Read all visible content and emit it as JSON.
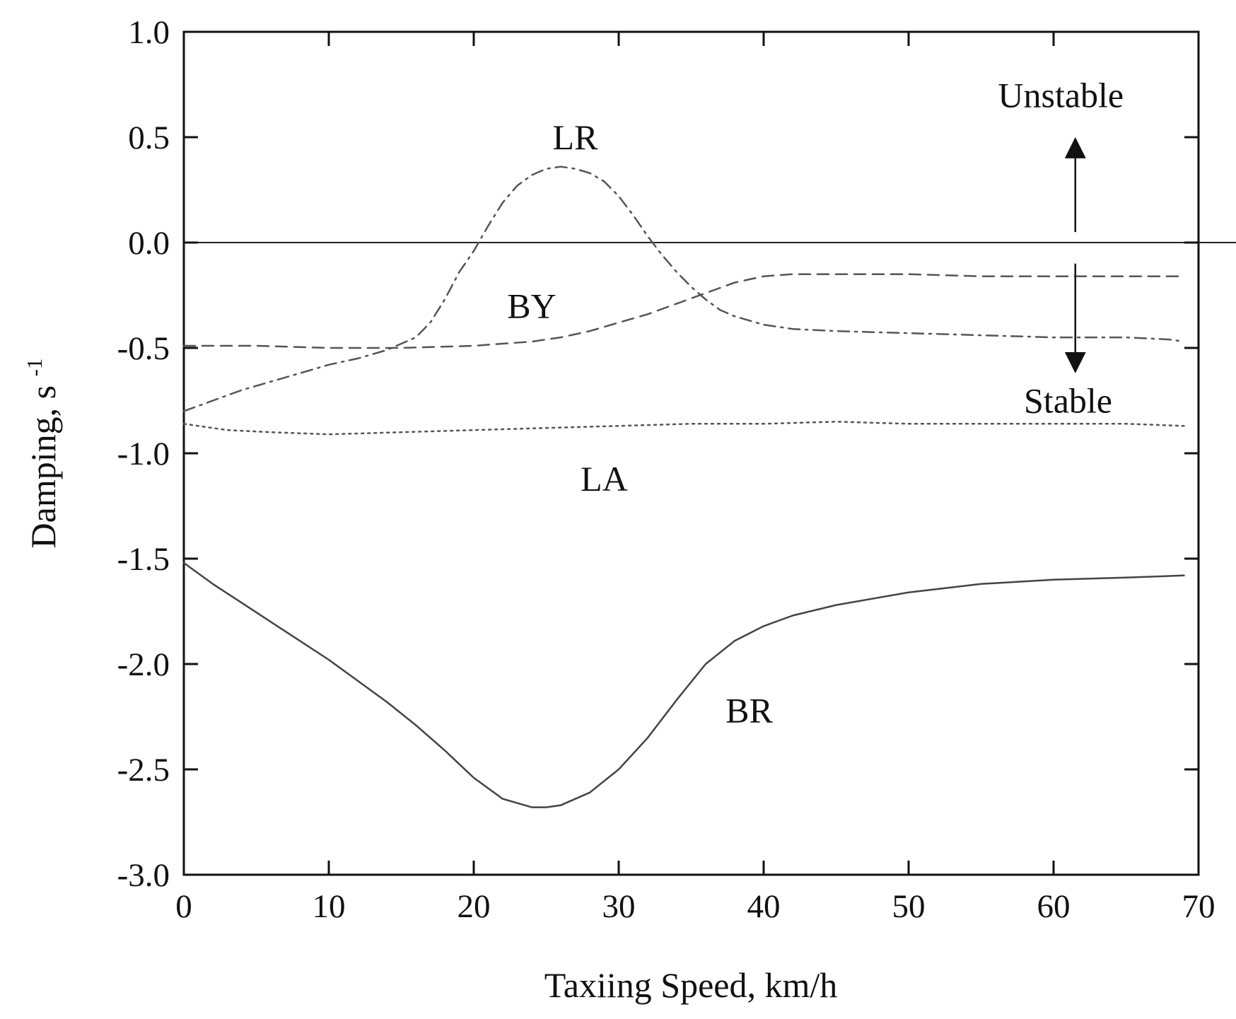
{
  "chart_data": {
    "type": "line",
    "title": "",
    "xlabel": "Taxiing Speed, km/h",
    "ylabel_main": "Damping, s",
    "ylabel_sup": "-1",
    "xlim": [
      0,
      70
    ],
    "ylim": [
      -3.0,
      1.0
    ],
    "xticks": [
      0,
      10,
      20,
      30,
      40,
      50,
      60,
      70
    ],
    "xtick_labels": [
      "0",
      "10",
      "20",
      "30",
      "40",
      "50",
      "60",
      "70"
    ],
    "yticks": [
      1.0,
      0.5,
      0.0,
      -0.5,
      -1.0,
      -1.5,
      -2.0,
      -2.5,
      -3.0
    ],
    "ytick_labels": [
      "1.0",
      "0.5",
      "0.0",
      "-0.5",
      "-1.0",
      "-1.5",
      "-2.0",
      "-2.5",
      "-3.0"
    ],
    "grid": false,
    "reference_line_y": 0.0,
    "series": [
      {
        "name": "LR",
        "style": "dashdot",
        "color": "#555555",
        "label_position": [
          27,
          0.5
        ],
        "x": [
          0,
          2,
          4,
          6,
          8,
          10,
          12,
          14,
          16,
          17,
          18,
          19,
          20,
          21,
          22,
          23,
          24,
          25,
          26,
          27,
          28,
          29,
          30,
          31,
          32,
          33,
          34,
          35,
          36,
          37,
          38,
          40,
          42,
          45,
          50,
          55,
          60,
          62,
          65,
          68,
          69
        ],
        "y": [
          -0.8,
          -0.75,
          -0.7,
          -0.66,
          -0.62,
          -0.58,
          -0.55,
          -0.51,
          -0.45,
          -0.38,
          -0.27,
          -0.14,
          -0.04,
          0.08,
          0.19,
          0.27,
          0.32,
          0.35,
          0.36,
          0.35,
          0.33,
          0.29,
          0.22,
          0.13,
          0.03,
          -0.06,
          -0.14,
          -0.21,
          -0.27,
          -0.32,
          -0.35,
          -0.39,
          -0.41,
          -0.42,
          -0.43,
          -0.44,
          -0.45,
          -0.45,
          -0.45,
          -0.46,
          -0.47
        ]
      },
      {
        "name": "BY",
        "style": "dashed",
        "color": "#555555",
        "label_position": [
          24,
          -0.3
        ],
        "x": [
          0,
          5,
          10,
          15,
          20,
          22,
          24,
          26,
          28,
          30,
          32,
          34,
          36,
          38,
          40,
          42,
          45,
          50,
          55,
          60,
          65,
          69
        ],
        "y": [
          -0.49,
          -0.49,
          -0.5,
          -0.5,
          -0.49,
          -0.48,
          -0.47,
          -0.45,
          -0.42,
          -0.38,
          -0.34,
          -0.29,
          -0.24,
          -0.19,
          -0.16,
          -0.15,
          -0.15,
          -0.15,
          -0.16,
          -0.16,
          -0.16,
          -0.16
        ]
      },
      {
        "name": "LA",
        "style": "dotted",
        "color": "#555555",
        "label_position": [
          29,
          -1.12
        ],
        "x": [
          0,
          3,
          6,
          10,
          15,
          20,
          25,
          30,
          35,
          40,
          45,
          50,
          55,
          60,
          65,
          69
        ],
        "y": [
          -0.86,
          -0.89,
          -0.9,
          -0.91,
          -0.9,
          -0.89,
          -0.88,
          -0.87,
          -0.86,
          -0.86,
          -0.85,
          -0.86,
          -0.86,
          -0.86,
          -0.86,
          -0.87
        ]
      },
      {
        "name": "BR",
        "style": "solid",
        "color": "#444444",
        "label_position": [
          39,
          -2.22
        ],
        "x": [
          0,
          2,
          4,
          6,
          8,
          10,
          12,
          14,
          16,
          18,
          20,
          22,
          24,
          25,
          26,
          28,
          30,
          32,
          34,
          36,
          38,
          40,
          42,
          45,
          50,
          55,
          60,
          65,
          69
        ],
        "y": [
          -1.52,
          -1.62,
          -1.71,
          -1.8,
          -1.89,
          -1.98,
          -2.08,
          -2.18,
          -2.29,
          -2.41,
          -2.54,
          -2.64,
          -2.68,
          -2.68,
          -2.67,
          -2.61,
          -2.5,
          -2.35,
          -2.17,
          -2.0,
          -1.89,
          -1.82,
          -1.77,
          -1.72,
          -1.66,
          -1.62,
          -1.6,
          -1.59,
          -1.58
        ]
      }
    ],
    "annotations": {
      "unstable_label": "Unstable",
      "stable_label": "Stable",
      "arrow_x": 61.5,
      "arrow_up_from": 0.05,
      "arrow_up_to": 0.45,
      "arrow_down_from": -0.1,
      "arrow_down_to": -0.57,
      "unstable_label_position": [
        60.5,
        0.7
      ],
      "stable_label_position": [
        61,
        -0.75
      ]
    }
  }
}
